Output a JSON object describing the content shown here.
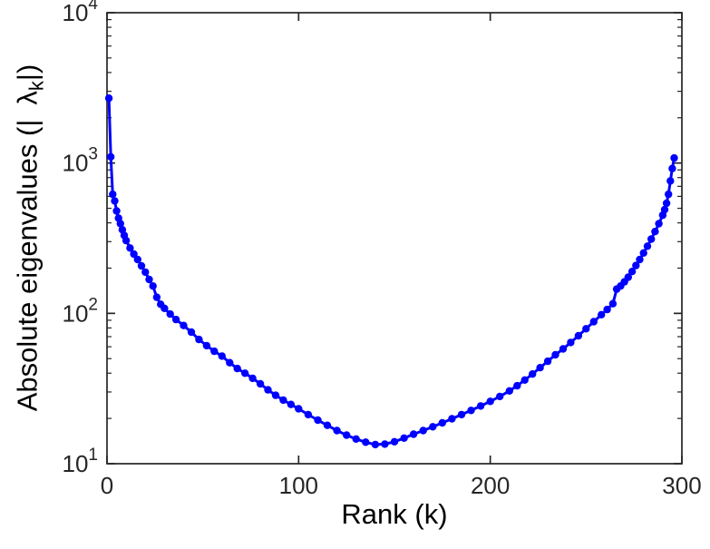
{
  "figure": {
    "background": "#ffffff",
    "axis_color": "#262626",
    "label_color": "#000000",
    "xlabel": {
      "text": "Rank (k)"
    },
    "ylabel": {
      "prefix": "Absolute eigenvalues (|",
      "symbol": "λ",
      "subscript": "k",
      "suffix": "|)"
    }
  },
  "chart_data": {
    "type": "line",
    "marker": "circle",
    "line_color": "#0000ff",
    "title": "",
    "xlabel": "Rank (k)",
    "ylabel": "Absolute eigenvalues (|λ_k|)",
    "x_scale": "linear",
    "y_scale": "log",
    "xlim": [
      0,
      300
    ],
    "ylim": [
      10,
      10000
    ],
    "x_ticks": [
      0,
      100,
      200,
      300
    ],
    "y_tick_exponents": [
      1,
      2,
      3,
      4
    ],
    "grid": false,
    "legend": null,
    "description": "U-shaped spectrum: absolute eigenvalues sorted by rank k, high at both ends (~2700 at k=1, ~1080 at k=296), minimum ~13 near k=140",
    "points": [
      [
        1,
        2700
      ],
      [
        2,
        1100
      ],
      [
        3,
        620
      ],
      [
        4,
        560
      ],
      [
        5,
        480
      ],
      [
        6,
        430
      ],
      [
        7,
        395
      ],
      [
        8,
        360
      ],
      [
        9,
        330
      ],
      [
        10,
        305
      ],
      [
        12,
        272
      ],
      [
        14,
        248
      ],
      [
        16,
        228
      ],
      [
        18,
        207
      ],
      [
        20,
        188
      ],
      [
        22,
        168
      ],
      [
        24,
        152
      ],
      [
        26,
        128
      ],
      [
        28,
        115
      ],
      [
        30,
        108
      ],
      [
        33,
        99
      ],
      [
        36,
        91
      ],
      [
        40,
        83
      ],
      [
        44,
        75
      ],
      [
        48,
        67
      ],
      [
        52,
        61
      ],
      [
        56,
        56
      ],
      [
        60,
        52
      ],
      [
        64,
        47
      ],
      [
        68,
        43
      ],
      [
        72,
        40
      ],
      [
        76,
        37
      ],
      [
        80,
        34
      ],
      [
        84,
        31
      ],
      [
        88,
        28.5
      ],
      [
        92,
        26.5
      ],
      [
        96,
        24.8
      ],
      [
        100,
        23.2
      ],
      [
        105,
        21.2
      ],
      [
        110,
        19.5
      ],
      [
        115,
        18
      ],
      [
        120,
        16.6
      ],
      [
        125,
        15.5
      ],
      [
        130,
        14.6
      ],
      [
        135,
        13.9
      ],
      [
        140,
        13.4
      ],
      [
        145,
        13.5
      ],
      [
        150,
        14
      ],
      [
        155,
        14.8
      ],
      [
        160,
        15.7
      ],
      [
        165,
        16.6
      ],
      [
        170,
        17.6
      ],
      [
        175,
        18.7
      ],
      [
        180,
        19.9
      ],
      [
        185,
        21.2
      ],
      [
        190,
        22.6
      ],
      [
        195,
        24.2
      ],
      [
        200,
        26
      ],
      [
        205,
        28
      ],
      [
        210,
        30.5
      ],
      [
        214,
        33
      ],
      [
        218,
        36
      ],
      [
        222,
        39.5
      ],
      [
        226,
        43.5
      ],
      [
        230,
        48
      ],
      [
        234,
        53
      ],
      [
        238,
        58
      ],
      [
        242,
        64
      ],
      [
        246,
        71
      ],
      [
        250,
        79
      ],
      [
        254,
        88
      ],
      [
        258,
        98
      ],
      [
        261,
        106
      ],
      [
        264,
        116
      ],
      [
        266,
        145
      ],
      [
        268,
        152
      ],
      [
        270,
        162
      ],
      [
        272,
        174
      ],
      [
        274,
        190
      ],
      [
        276,
        208
      ],
      [
        278,
        228
      ],
      [
        280,
        252
      ],
      [
        282,
        280
      ],
      [
        284,
        312
      ],
      [
        286,
        350
      ],
      [
        288,
        395
      ],
      [
        290,
        450
      ],
      [
        291,
        490
      ],
      [
        292,
        540
      ],
      [
        293,
        620
      ],
      [
        294,
        760
      ],
      [
        295,
        920
      ],
      [
        296,
        1080
      ]
    ]
  }
}
